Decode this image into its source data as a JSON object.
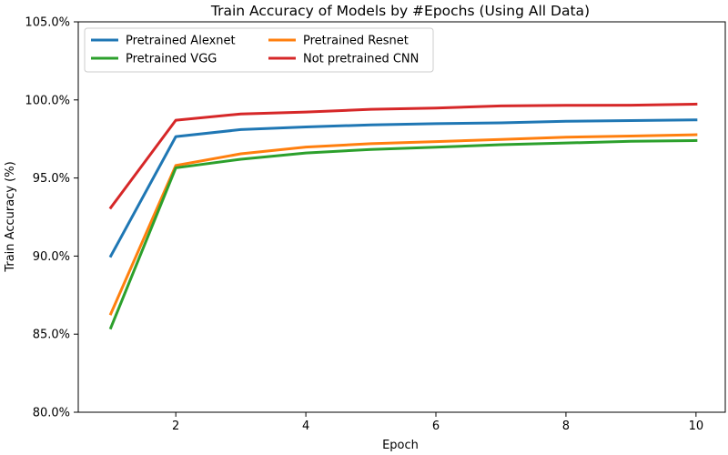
{
  "chart_data": {
    "type": "line",
    "title": "Train Accuracy of Models by #Epochs (Using All Data)",
    "xlabel": "Epoch",
    "ylabel": "Train Accuracy (%)",
    "x": [
      1,
      2,
      3,
      4,
      5,
      6,
      7,
      8,
      9,
      10
    ],
    "xlim": [
      0.5,
      10.45
    ],
    "ylim": [
      80,
      105
    ],
    "x_ticks": [
      2,
      4,
      6,
      8,
      10
    ],
    "x_tick_labels": [
      "2",
      "4",
      "6",
      "8",
      "10"
    ],
    "y_ticks": [
      80,
      85,
      90,
      95,
      100,
      105
    ],
    "y_tick_labels": [
      "80.0%",
      "85.0%",
      "90.0%",
      "95.0%",
      "100.0%",
      "105.0%"
    ],
    "grid": false,
    "legend_position": "top-left",
    "legend_columns": 2,
    "series": [
      {
        "name": "Pretrained Alexnet",
        "color": "#1f77b4",
        "values": [
          90.0,
          97.65,
          98.1,
          98.27,
          98.4,
          98.48,
          98.53,
          98.63,
          98.68,
          98.72
        ]
      },
      {
        "name": "Pretrained Resnet",
        "color": "#ff7f0e",
        "values": [
          86.3,
          95.8,
          96.55,
          96.98,
          97.2,
          97.33,
          97.47,
          97.61,
          97.69,
          97.77
        ]
      },
      {
        "name": "Pretrained VGG",
        "color": "#2ca02c",
        "values": [
          85.4,
          95.65,
          96.2,
          96.6,
          96.83,
          96.97,
          97.13,
          97.24,
          97.35,
          97.4
        ]
      },
      {
        "name": "Not pretrained CNN",
        "color": "#d62728",
        "values": [
          93.1,
          98.7,
          99.1,
          99.22,
          99.4,
          99.48,
          99.62,
          99.65,
          99.66,
          99.73
        ]
      }
    ]
  }
}
